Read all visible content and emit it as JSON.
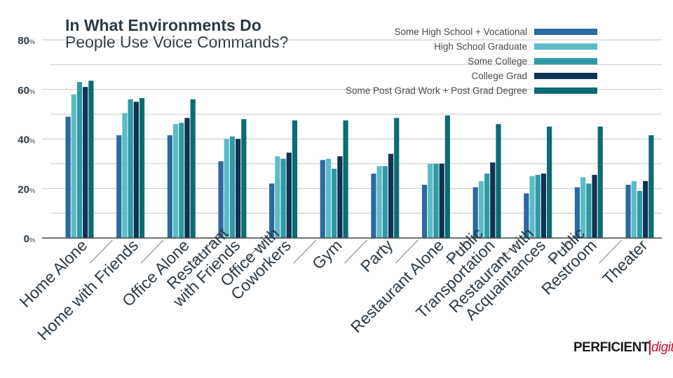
{
  "title": {
    "line1": "In What Environments Do",
    "line2": "People Use Voice Commands?"
  },
  "brand": {
    "part1": "PERFICIENT",
    "part2": "digital"
  },
  "colors": {
    "grid": "#b5b5b5",
    "axis": "#444444",
    "text": "#2b3a45",
    "legend_text": "#4a4a4a"
  },
  "chart_data": {
    "type": "bar",
    "ylim": [
      0,
      80
    ],
    "yticks": [
      {
        "value": 0,
        "label": "0",
        "unit": "%"
      },
      {
        "value": 20,
        "label": "20",
        "unit": "%"
      },
      {
        "value": 40,
        "label": "40",
        "unit": "%"
      },
      {
        "value": 60,
        "label": "60",
        "unit": "%"
      },
      {
        "value": 80,
        "label": "80",
        "unit": "%"
      }
    ],
    "grid": true,
    "legend_position": "top-right",
    "categories": [
      [
        "Home Alone"
      ],
      [
        "Home with Friends"
      ],
      [
        "Office Alone"
      ],
      [
        "Restaurant",
        "with Friends"
      ],
      [
        "Office with",
        "Coworkers"
      ],
      [
        "Gym"
      ],
      [
        "Party"
      ],
      [
        "Restaurant Alone"
      ],
      [
        "Public",
        "Transportation"
      ],
      [
        "Restaurant with",
        "Acquaintances"
      ],
      [
        "Public",
        "Restroom"
      ],
      [
        "Theater"
      ]
    ],
    "series": [
      {
        "name": "Some High School + Vocational",
        "color": "#2a6aa0",
        "values": [
          49,
          41.5,
          41.5,
          31,
          22,
          31.5,
          26,
          21.5,
          20.5,
          18,
          20.5,
          21.5
        ]
      },
      {
        "name": "High School Graduate",
        "color": "#5bbcc7",
        "values": [
          58,
          50.5,
          46,
          40,
          33,
          32,
          29,
          30,
          23,
          25,
          24.5,
          23
        ]
      },
      {
        "name": "Some College",
        "color": "#2e9aa6",
        "values": [
          63,
          56,
          46.5,
          41,
          32,
          28,
          29,
          30,
          26,
          25.5,
          22,
          19
        ]
      },
      {
        "name": "College Grad",
        "color": "#0e3353",
        "values": [
          61,
          55,
          48.5,
          40,
          34.5,
          33,
          34,
          30,
          30.5,
          26,
          25.5,
          23
        ]
      },
      {
        "name": "Some Post Grad Work + Post Grad Degree",
        "color": "#0b6d73",
        "values": [
          63.5,
          56.5,
          56,
          48,
          47.5,
          47.5,
          48.5,
          49.5,
          46,
          45,
          45,
          41.5
        ]
      }
    ]
  }
}
